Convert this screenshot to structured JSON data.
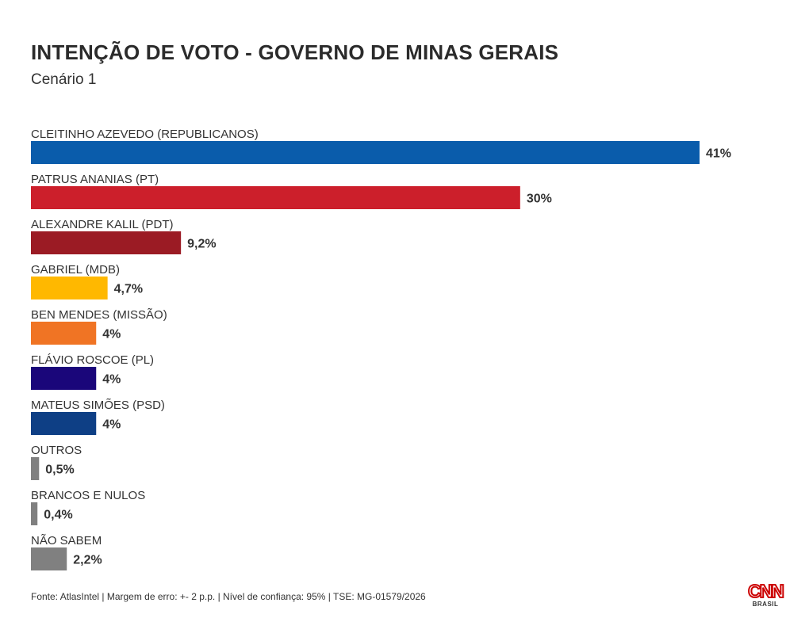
{
  "chart_data": {
    "type": "bar",
    "orientation": "horizontal",
    "title": "INTENÇÃO DE VOTO - GOVERNO DE MINAS GERAIS",
    "subtitle": "Cenário 1",
    "categories": [
      "CLEITINHO AZEVEDO (REPUBLICANOS)",
      "PATRUS ANANIAS (PT)",
      "ALEXANDRE KALIL (PDT)",
      "GABRIEL (MDB)",
      "BEN MENDES (MISSÃO)",
      "FLÁVIO ROSCOE (PL)",
      "MATEUS SIMÕES (PSD)",
      "OUTROS",
      "BRANCOS E NULOS",
      "NÃO SABEM"
    ],
    "values": [
      41,
      30,
      9.2,
      4.7,
      4,
      4,
      4,
      0.5,
      0.4,
      2.2
    ],
    "value_labels": [
      "41%",
      "30%",
      "9,2%",
      "4,7%",
      "4%",
      "4%",
      "4%",
      "0,5%",
      "0,4%",
      "2,2%"
    ],
    "colors": [
      "#0a5cab",
      "#cc1f2b",
      "#9b1b24",
      "#ffb800",
      "#f07424",
      "#1a067a",
      "#0e3f85",
      "#808080",
      "#808080",
      "#808080"
    ],
    "xlim": [
      0,
      41
    ],
    "grid": false,
    "legend": "none"
  },
  "footer": {
    "source": "Fonte: AtlasIntel | Margem de erro: +- 2 p.p. | Nível de confiança: 95% | TSE: MG-01579/2026"
  },
  "logo": {
    "text": "CNN",
    "subtext": "BRASIL"
  }
}
